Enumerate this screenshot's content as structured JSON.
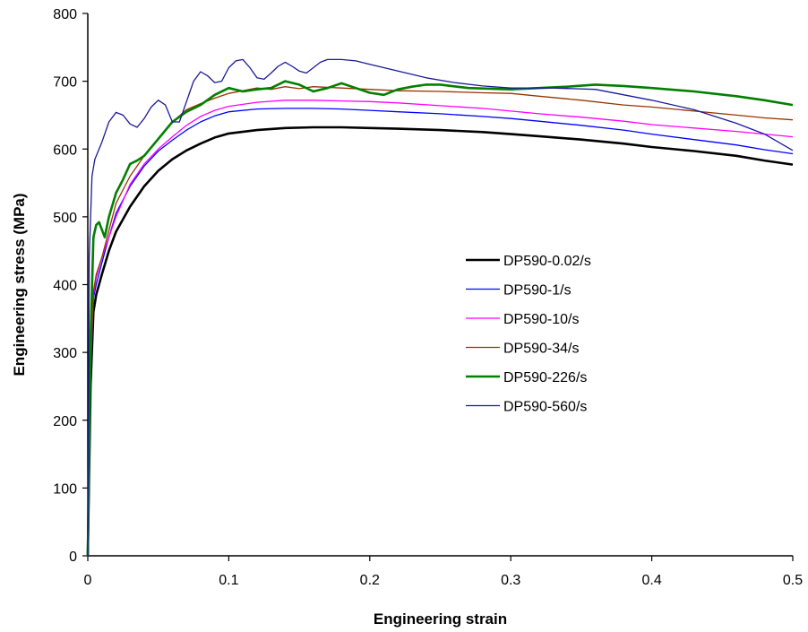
{
  "chart_data": {
    "type": "line",
    "title": "",
    "xlabel": "Engineering strain",
    "ylabel": "Engineering stress (MPa)",
    "xlim": [
      0,
      0.5
    ],
    "ylim": [
      0,
      800
    ],
    "x_ticks": [
      "0",
      "0.1",
      "0.2",
      "0.3",
      "0.4",
      "0.5"
    ],
    "y_ticks": [
      "0",
      "100",
      "200",
      "300",
      "400",
      "500",
      "600",
      "700",
      "800"
    ],
    "grid": false,
    "legend_position": "center-right",
    "series": [
      {
        "name": "DP590-0.02/s",
        "color": "#000000",
        "width": 2.6,
        "x": [
          0,
          0.002,
          0.004,
          0.006,
          0.01,
          0.015,
          0.02,
          0.03,
          0.04,
          0.05,
          0.06,
          0.07,
          0.08,
          0.09,
          0.1,
          0.12,
          0.14,
          0.16,
          0.18,
          0.2,
          0.22,
          0.25,
          0.28,
          0.3,
          0.32,
          0.35,
          0.38,
          0.4,
          0.43,
          0.46,
          0.48,
          0.5
        ],
        "y": [
          0,
          250,
          360,
          385,
          415,
          450,
          478,
          515,
          545,
          568,
          585,
          598,
          608,
          617,
          623,
          628,
          631,
          632,
          632,
          631,
          630,
          628,
          625,
          622,
          619,
          614,
          608,
          603,
          597,
          590,
          583,
          577
        ]
      },
      {
        "name": "DP590-1/s",
        "color": "#0000ff",
        "width": 1.3,
        "x": [
          0,
          0.002,
          0.004,
          0.006,
          0.01,
          0.015,
          0.02,
          0.03,
          0.04,
          0.05,
          0.06,
          0.07,
          0.08,
          0.09,
          0.1,
          0.12,
          0.14,
          0.16,
          0.18,
          0.2,
          0.22,
          0.25,
          0.28,
          0.3,
          0.32,
          0.35,
          0.38,
          0.4,
          0.43,
          0.46,
          0.48,
          0.5
        ],
        "y": [
          0,
          260,
          380,
          400,
          432,
          470,
          505,
          545,
          575,
          597,
          613,
          628,
          640,
          649,
          655,
          659,
          660,
          660,
          659,
          657,
          655,
          652,
          648,
          645,
          641,
          635,
          628,
          622,
          614,
          606,
          599,
          593
        ]
      },
      {
        "name": "DP590-10/s",
        "color": "#ff00ff",
        "width": 1.3,
        "x": [
          0,
          0.002,
          0.004,
          0.006,
          0.01,
          0.015,
          0.02,
          0.03,
          0.04,
          0.05,
          0.06,
          0.07,
          0.08,
          0.09,
          0.1,
          0.12,
          0.14,
          0.16,
          0.18,
          0.2,
          0.22,
          0.25,
          0.28,
          0.3,
          0.32,
          0.35,
          0.38,
          0.4,
          0.43,
          0.46,
          0.48,
          0.5
        ],
        "y": [
          0,
          280,
          385,
          410,
          440,
          470,
          500,
          548,
          578,
          600,
          618,
          635,
          648,
          657,
          663,
          669,
          672,
          672,
          671,
          670,
          668,
          664,
          660,
          656,
          652,
          647,
          641,
          636,
          631,
          626,
          622,
          618
        ]
      },
      {
        "name": "DP590-34/s",
        "color": "#993300",
        "width": 1.3,
        "x": [
          0,
          0.002,
          0.004,
          0.006,
          0.01,
          0.015,
          0.02,
          0.03,
          0.04,
          0.05,
          0.06,
          0.07,
          0.08,
          0.09,
          0.1,
          0.11,
          0.12,
          0.13,
          0.14,
          0.15,
          0.16,
          0.18,
          0.2,
          0.22,
          0.25,
          0.28,
          0.3,
          0.32,
          0.35,
          0.38,
          0.4,
          0.43,
          0.46,
          0.48,
          0.5
        ],
        "y": [
          0,
          270,
          390,
          415,
          440,
          480,
          520,
          560,
          590,
          615,
          640,
          658,
          667,
          675,
          682,
          686,
          690,
          688,
          692,
          689,
          692,
          690,
          688,
          686,
          685,
          683,
          682,
          678,
          672,
          665,
          662,
          656,
          650,
          646,
          643
        ]
      },
      {
        "name": "DP590-226/s",
        "color": "#008000",
        "width": 2.6,
        "x": [
          0,
          0.002,
          0.004,
          0.006,
          0.008,
          0.012,
          0.015,
          0.02,
          0.025,
          0.03,
          0.035,
          0.04,
          0.05,
          0.06,
          0.07,
          0.08,
          0.09,
          0.1,
          0.11,
          0.12,
          0.13,
          0.14,
          0.15,
          0.16,
          0.17,
          0.18,
          0.19,
          0.2,
          0.21,
          0.22,
          0.23,
          0.24,
          0.25,
          0.27,
          0.3,
          0.32,
          0.34,
          0.36,
          0.38,
          0.4,
          0.43,
          0.46,
          0.48,
          0.5
        ],
        "y": [
          0,
          320,
          470,
          488,
          492,
          470,
          500,
          535,
          555,
          578,
          583,
          590,
          615,
          640,
          655,
          665,
          680,
          690,
          685,
          688,
          690,
          700,
          695,
          685,
          690,
          697,
          690,
          683,
          680,
          688,
          692,
          695,
          695,
          690,
          688,
          690,
          692,
          695,
          693,
          690,
          685,
          678,
          672,
          665
        ]
      },
      {
        "name": "DP590-560/s",
        "color": "#1a1a99",
        "width": 1.3,
        "x": [
          0,
          0.001,
          0.003,
          0.005,
          0.01,
          0.015,
          0.02,
          0.025,
          0.03,
          0.035,
          0.04,
          0.045,
          0.05,
          0.055,
          0.06,
          0.065,
          0.07,
          0.075,
          0.08,
          0.085,
          0.09,
          0.095,
          0.1,
          0.105,
          0.11,
          0.115,
          0.12,
          0.125,
          0.13,
          0.135,
          0.14,
          0.145,
          0.15,
          0.155,
          0.16,
          0.165,
          0.17,
          0.175,
          0.18,
          0.19,
          0.2,
          0.22,
          0.24,
          0.26,
          0.28,
          0.3,
          0.33,
          0.36,
          0.4,
          0.43,
          0.46,
          0.48,
          0.5
        ],
        "y": [
          0,
          440,
          560,
          585,
          610,
          640,
          654,
          650,
          637,
          632,
          645,
          662,
          672,
          665,
          640,
          640,
          670,
          700,
          714,
          708,
          698,
          700,
          720,
          730,
          732,
          720,
          705,
          703,
          712,
          722,
          728,
          722,
          715,
          712,
          720,
          728,
          732,
          732,
          732,
          730,
          725,
          715,
          705,
          698,
          693,
          690,
          690,
          688,
          672,
          658,
          638,
          622,
          598
        ]
      }
    ]
  }
}
